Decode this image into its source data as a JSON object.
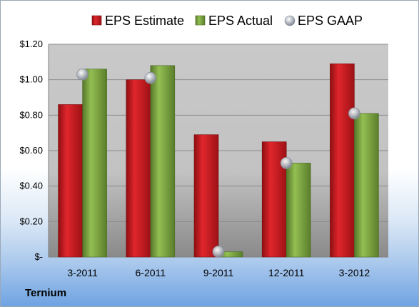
{
  "company": "Ternium",
  "colors": {
    "estimate": "#c8161d",
    "actual": "#77a23c",
    "gaap": "#b9bec6"
  },
  "chart_data": {
    "type": "bar",
    "categories": [
      "3-2011",
      "6-2011",
      "9-2011",
      "12-2011",
      "3-2012"
    ],
    "series": [
      {
        "name": "EPS Estimate",
        "kind": "bar",
        "values": [
          0.86,
          1.0,
          0.69,
          0.65,
          1.09
        ]
      },
      {
        "name": "EPS Actual",
        "kind": "bar",
        "values": [
          1.06,
          1.08,
          0.03,
          0.53,
          0.81
        ]
      },
      {
        "name": "EPS GAAP",
        "kind": "marker",
        "values": [
          1.03,
          1.01,
          0.03,
          0.53,
          0.81
        ]
      }
    ],
    "ylim": [
      0,
      1.2
    ],
    "yticks": [
      0,
      0.2,
      0.4,
      0.6,
      0.8,
      1.0,
      1.2
    ],
    "ytick_labels": [
      "$-",
      "$0.20",
      "$0.40",
      "$0.60",
      "$0.80",
      "$1.00",
      "$1.20"
    ],
    "legend_position": "top",
    "grid": true,
    "title": "",
    "xlabel": "",
    "ylabel": ""
  }
}
